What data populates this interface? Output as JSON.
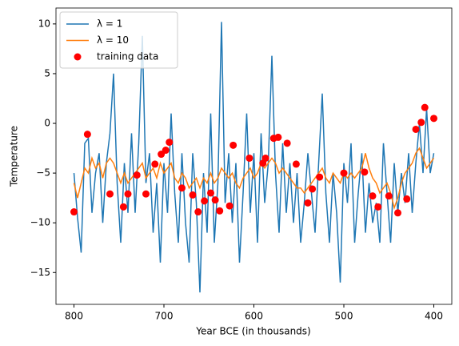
{
  "chart_data": {
    "type": "line",
    "xlabel": "Year BCE (in thousands)",
    "ylabel": "Temperature",
    "xlim": [
      820,
      380
    ],
    "ylim": [
      -18.2,
      11.6
    ],
    "xticks": [
      800,
      700,
      600,
      500,
      400
    ],
    "yticks": [
      10,
      5,
      0,
      {
        "value": -5,
        "label": "−5"
      },
      {
        "value": -10,
        "label": "−10"
      },
      {
        "value": -15,
        "label": "−15"
      }
    ],
    "legend": "upper left",
    "x": [
      800,
      796,
      792,
      788,
      784,
      780,
      776,
      772,
      768,
      764,
      760,
      756,
      752,
      748,
      744,
      740,
      736,
      732,
      728,
      724,
      720,
      716,
      712,
      708,
      704,
      700,
      696,
      692,
      688,
      684,
      680,
      676,
      672,
      668,
      664,
      660,
      656,
      652,
      648,
      644,
      640,
      636,
      632,
      628,
      624,
      620,
      616,
      612,
      608,
      604,
      600,
      596,
      592,
      588,
      584,
      580,
      576,
      572,
      568,
      564,
      560,
      556,
      552,
      548,
      544,
      540,
      536,
      532,
      528,
      524,
      520,
      516,
      512,
      508,
      504,
      500,
      496,
      492,
      488,
      484,
      480,
      476,
      472,
      468,
      464,
      460,
      456,
      452,
      448,
      444,
      440,
      436,
      432,
      428,
      424,
      420,
      416,
      412,
      408,
      404,
      400
    ],
    "series": [
      {
        "name": "λ = 1",
        "type": "line",
        "color": "#1f77b4",
        "values": [
          -5,
          -9.5,
          -13,
          -2,
          -1.5,
          -9,
          -5,
          -3,
          -10,
          -4,
          -1,
          5,
          -6,
          -12,
          -4,
          -9,
          -1,
          -9,
          -2,
          8.8,
          -6,
          -3,
          -11,
          -6,
          -14,
          -4,
          -9,
          1,
          -7,
          -12,
          -3,
          -10,
          -14,
          -3,
          -8,
          -17,
          -5,
          -11,
          1,
          -12,
          -6,
          10.2,
          -8,
          -3,
          -10,
          -4,
          -14,
          -7,
          1,
          -9,
          -3,
          -12,
          -1,
          -8,
          -4,
          6.8,
          -5,
          -11,
          -2,
          -9,
          -4,
          -10,
          -5,
          -12,
          -8,
          -3,
          -7,
          -11,
          -4,
          3,
          -7,
          -12,
          -5,
          -9,
          -16,
          -4,
          -8,
          -2,
          -12,
          -7,
          -3,
          -11,
          -6,
          -10,
          -8,
          -12,
          -2,
          -7,
          -12,
          -4,
          -9,
          -5,
          -8,
          -3,
          -9,
          -4,
          0,
          -5,
          1.5,
          -5,
          -3
        ]
      },
      {
        "name": "λ = 10",
        "type": "line",
        "color": "#ff7f0e",
        "values": [
          -6,
          -7.5,
          -6,
          -4.5,
          -5,
          -3.5,
          -4.5,
          -4,
          -5.5,
          -4,
          -3.5,
          -4,
          -5,
          -6,
          -5,
          -6,
          -5.5,
          -5,
          -4.5,
          -4,
          -5.5,
          -5,
          -4.5,
          -5.5,
          -4,
          -5,
          -4.5,
          -4,
          -5.5,
          -6,
          -5,
          -5.5,
          -6.5,
          -6,
          -5.5,
          -6.5,
          -5.5,
          -6,
          -5,
          -6,
          -5.5,
          -4.5,
          -5,
          -5.5,
          -5,
          -6,
          -6.5,
          -5.5,
          -5,
          -4.5,
          -5.5,
          -5,
          -4,
          -4.5,
          -4,
          -3.5,
          -4,
          -5,
          -4.5,
          -5,
          -5.5,
          -6,
          -6.5,
          -6.5,
          -7,
          -6.5,
          -6,
          -5.5,
          -5,
          -4.5,
          -5.5,
          -6,
          -5,
          -5.5,
          -6,
          -5,
          -5.5,
          -5,
          -5.5,
          -5,
          -4.5,
          -3,
          -4.5,
          -5.5,
          -6,
          -7,
          -6.5,
          -6,
          -7,
          -8.5,
          -7.5,
          -6,
          -5,
          -4.5,
          -4,
          -3,
          -2.5,
          -3.5,
          -4.5,
          -4,
          -3.5
        ]
      },
      {
        "name": "training data",
        "type": "scatter",
        "color": "#ff0000",
        "x": [
          800,
          785,
          760,
          745,
          740,
          730,
          720,
          710,
          703,
          698,
          694,
          680,
          668,
          662,
          655,
          648,
          643,
          638,
          627,
          623,
          605,
          590,
          587,
          578,
          573,
          563,
          553,
          540,
          535,
          527,
          500,
          477,
          468,
          462,
          450,
          440,
          430,
          420,
          414,
          410,
          400
        ],
        "values": [
          -8.9,
          -1.1,
          -7.1,
          -8.4,
          -7.1,
          -5.2,
          -7.1,
          -4.1,
          -3.1,
          -2.7,
          -1.9,
          -6.5,
          -7.2,
          -8.9,
          -7.8,
          -7.0,
          -7.7,
          -8.8,
          -8.3,
          -2.2,
          -3.5,
          -4.0,
          -3.5,
          -1.5,
          -1.4,
          -2.0,
          -4.1,
          -8.0,
          -6.6,
          -5.4,
          -5.0,
          -4.9,
          -7.3,
          -8.4,
          -7.3,
          -9.0,
          -7.6,
          -0.6,
          0.1,
          1.6,
          0.5
        ]
      }
    ]
  }
}
